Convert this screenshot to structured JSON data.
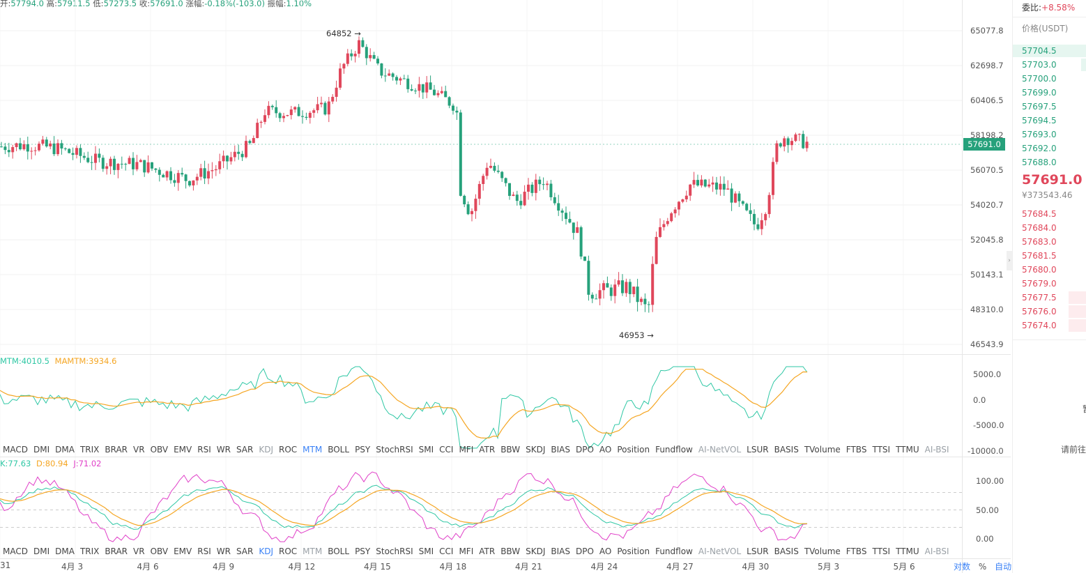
{
  "header": {
    "open_label": "开:",
    "open": "57794.0",
    "high_label": "高:",
    "high": "57911.5",
    "low_label": "低:",
    "low": "57273.5",
    "close_label": "收:",
    "close": "57691.0",
    "change_label": "涨幅:",
    "change": "-0.18%(-103.0)",
    "amp_label": "振幅:",
    "amp": "1.10%"
  },
  "price_axis": [
    "65077.8",
    "62698.7",
    "60406.5",
    "58198.2",
    "56070.5",
    "54020.7",
    "52045.8",
    "50143.1",
    "48310.0",
    "46543.9"
  ],
  "current_price_tag": "57691.0",
  "annotations": {
    "high": "64852",
    "low": "46953"
  },
  "mtm": {
    "legend_mtm": "MTM:4010.5",
    "legend_mamtm": "MAMTM:3934.6",
    "axis": [
      "5000.0",
      "0.0",
      "-5000.0",
      "-10000.0"
    ]
  },
  "kdj": {
    "legend_k": "K:77.63",
    "legend_d": "D:80.94",
    "legend_j": "J:71.02",
    "axis": [
      "100.00",
      "50.00",
      "0.00"
    ]
  },
  "indicator_tabs": [
    "MACD",
    "DMI",
    "DMA",
    "TRIX",
    "BRAR",
    "VR",
    "OBV",
    "EMV",
    "RSI",
    "WR",
    "SAR",
    "KDJ",
    "ROC",
    "MTM",
    "BOLL",
    "PSY",
    "StochRSI",
    "SMI",
    "CCI",
    "MFI",
    "ATR",
    "BBW",
    "SKDJ",
    "BIAS",
    "DPO",
    "AO",
    "Position",
    "Fundflow",
    "AI-NetVOL",
    "LSUR",
    "BASIS",
    "TVolume",
    "FTBS",
    "TTSI",
    "TTMU",
    "AI-BSI"
  ],
  "x_axis": [
    "31",
    "4月 3",
    "4月 6",
    "4月 9",
    "4月 12",
    "4月 15",
    "4月 18",
    "4月 21",
    "4月 24",
    "4月 27",
    "4月 30",
    "5月 3",
    "5月 6"
  ],
  "x_controls": {
    "log": "对数",
    "pct": "%",
    "auto": "自动"
  },
  "orderbook": {
    "ratio_label": "委比:",
    "ratio": "+8.58%",
    "price_header": "价格(USDT)",
    "asks": [
      "57704.5",
      "57703.0",
      "57700.0",
      "57699.0",
      "57697.5",
      "57694.5",
      "57693.0",
      "57692.0",
      "57688.0"
    ],
    "last_price": "57691.0",
    "last_cny": "¥373543.46",
    "bids": [
      "57684.5",
      "57684.0",
      "57683.0",
      "57681.5",
      "57680.0",
      "57679.0",
      "57677.5",
      "57676.0",
      "57674.0"
    ],
    "cut_text_1": "暂",
    "cut_text_2": "请前往"
  },
  "colors": {
    "up": "#26a17b",
    "down": "#e0475b",
    "mtm": "#2ec7a4",
    "mamtm": "#f5a623",
    "k": "#2ec7a4",
    "d": "#f5a623",
    "j": "#e040c8"
  }
}
